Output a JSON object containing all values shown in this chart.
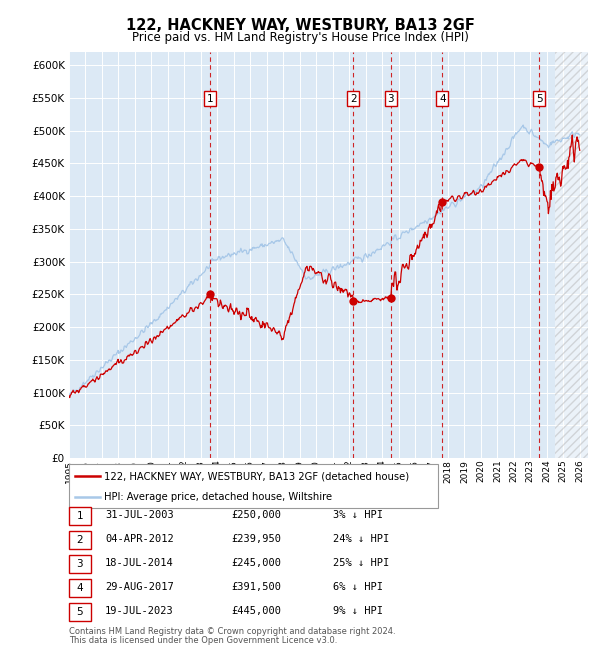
{
  "title": "122, HACKNEY WAY, WESTBURY, BA13 2GF",
  "subtitle": "Price paid vs. HM Land Registry's House Price Index (HPI)",
  "ylim": [
    0,
    620000
  ],
  "yticks": [
    0,
    50000,
    100000,
    150000,
    200000,
    250000,
    300000,
    350000,
    400000,
    450000,
    500000,
    550000,
    600000
  ],
  "ytick_labels": [
    "£0",
    "£50K",
    "£100K",
    "£150K",
    "£200K",
    "£250K",
    "£300K",
    "£350K",
    "£400K",
    "£450K",
    "£500K",
    "£550K",
    "£600K"
  ],
  "xlim_start": 1995.0,
  "xlim_end": 2026.5,
  "plot_bg_color": "#dce9f5",
  "hpi_line_color": "#a8c8e8",
  "price_line_color": "#cc0000",
  "marker_color": "#cc0000",
  "dashed_line_color": "#cc0000",
  "sale_events": [
    {
      "num": 1,
      "year": 2003.58,
      "price": 250000
    },
    {
      "num": 2,
      "year": 2012.25,
      "price": 239950
    },
    {
      "num": 3,
      "year": 2014.54,
      "price": 245000
    },
    {
      "num": 4,
      "year": 2017.66,
      "price": 391500
    },
    {
      "num": 5,
      "year": 2023.54,
      "price": 445000
    }
  ],
  "legend_property_label": "122, HACKNEY WAY, WESTBURY, BA13 2GF (detached house)",
  "legend_hpi_label": "HPI: Average price, detached house, Wiltshire",
  "footer_line1": "Contains HM Land Registry data © Crown copyright and database right 2024.",
  "footer_line2": "This data is licensed under the Open Government Licence v3.0.",
  "table_rows": [
    {
      "num": 1,
      "date": "31-JUL-2003",
      "price": "£250,000",
      "pct": "3% ↓ HPI"
    },
    {
      "num": 2,
      "date": "04-APR-2012",
      "price": "£239,950",
      "pct": "24% ↓ HPI"
    },
    {
      "num": 3,
      "date": "18-JUL-2014",
      "price": "£245,000",
      "pct": "25% ↓ HPI"
    },
    {
      "num": 4,
      "date": "29-AUG-2017",
      "price": "£391,500",
      "pct": "6% ↓ HPI"
    },
    {
      "num": 5,
      "date": "19-JUL-2023",
      "price": "£445,000",
      "pct": "9% ↓ HPI"
    }
  ]
}
